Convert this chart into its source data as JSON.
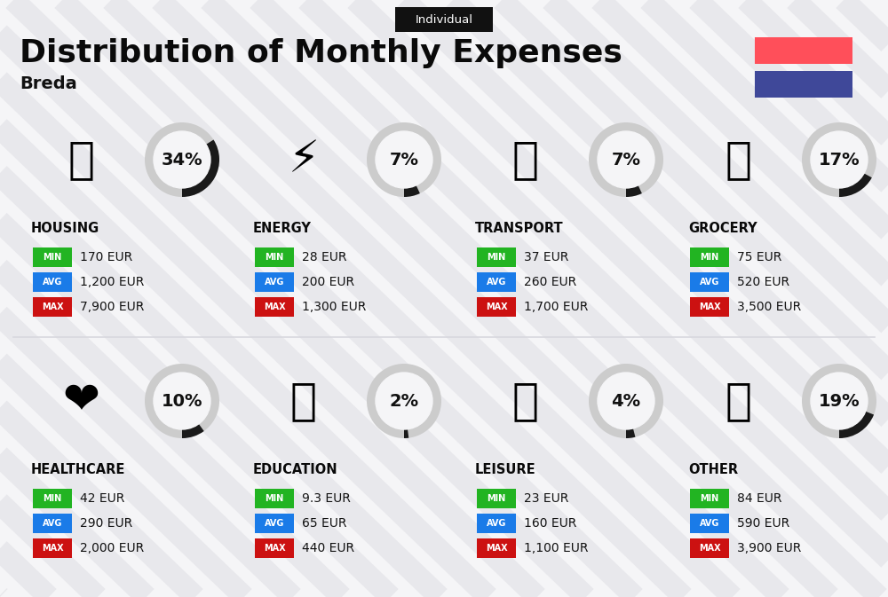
{
  "title": "Distribution of Monthly Expenses",
  "subtitle": "Breda",
  "tag": "Individual",
  "bg_color": "#f5f5f7",
  "flag_red": "#ff4f5a",
  "flag_blue": "#3f4899",
  "categories": [
    {
      "name": "HOUSING",
      "pct": 34,
      "icon": "🏗",
      "min_val": "170 EUR",
      "avg_val": "1,200 EUR",
      "max_val": "7,900 EUR",
      "row": 0,
      "col": 0
    },
    {
      "name": "ENERGY",
      "pct": 7,
      "icon": "⚡",
      "min_val": "28 EUR",
      "avg_val": "200 EUR",
      "max_val": "1,300 EUR",
      "row": 0,
      "col": 1
    },
    {
      "name": "TRANSPORT",
      "pct": 7,
      "icon": "🚌",
      "min_val": "37 EUR",
      "avg_val": "260 EUR",
      "max_val": "1,700 EUR",
      "row": 0,
      "col": 2
    },
    {
      "name": "GROCERY",
      "pct": 17,
      "icon": "🛒",
      "min_val": "75 EUR",
      "avg_val": "520 EUR",
      "max_val": "3,500 EUR",
      "row": 0,
      "col": 3
    },
    {
      "name": "HEALTHCARE",
      "pct": 10,
      "icon": "❤️",
      "min_val": "42 EUR",
      "avg_val": "290 EUR",
      "max_val": "2,000 EUR",
      "row": 1,
      "col": 0
    },
    {
      "name": "EDUCATION",
      "pct": 2,
      "icon": "🎓",
      "min_val": "9.3 EUR",
      "avg_val": "65 EUR",
      "max_val": "440 EUR",
      "row": 1,
      "col": 1
    },
    {
      "name": "LEISURE",
      "pct": 4,
      "icon": "🛍",
      "min_val": "23 EUR",
      "avg_val": "160 EUR",
      "max_val": "1,100 EUR",
      "row": 1,
      "col": 2
    },
    {
      "name": "OTHER",
      "pct": 19,
      "icon": "💰",
      "min_val": "84 EUR",
      "avg_val": "590 EUR",
      "max_val": "3,900 EUR",
      "row": 1,
      "col": 3
    }
  ],
  "min_color": "#22b422",
  "avg_color": "#1a7be8",
  "max_color": "#cc1111",
  "stripe_color": "#e8e8ec",
  "divider_color": "#d8d8de"
}
